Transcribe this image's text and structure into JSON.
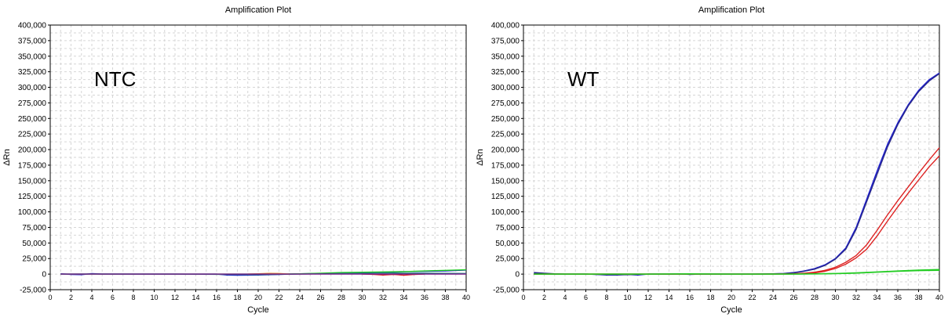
{
  "chart_data": [
    {
      "type": "line",
      "title": "Amplification Plot",
      "annotation": "NTC",
      "xlabel": "Cycle",
      "ylabel": "ΔRn",
      "xlim": [
        0,
        40
      ],
      "ylim": [
        -25000,
        400000
      ],
      "x_ticks": [
        "0",
        "2",
        "4",
        "6",
        "8",
        "10",
        "12",
        "14",
        "16",
        "18",
        "20",
        "22",
        "24",
        "26",
        "28",
        "30",
        "32",
        "34",
        "36",
        "38",
        "40"
      ],
      "y_ticks": [
        "-25,000",
        "0",
        "25,000",
        "50,000",
        "75,000",
        "100,000",
        "125,000",
        "150,000",
        "175,000",
        "200,000",
        "225,000",
        "250,000",
        "275,000",
        "300,000",
        "325,000",
        "350,000",
        "375,000",
        "400,000"
      ],
      "grid": true,
      "colors": {
        "blue": "#1a1ad0",
        "navy": "#2a2a8a",
        "green": "#22cc22",
        "teal": "#1f7f7f",
        "red": "#dd2222",
        "orange": "#e08a1e",
        "purple": "#7a1a8a"
      },
      "series": [
        {
          "color": "#1a1ad0",
          "x": [
            1,
            2,
            3,
            4,
            5,
            6,
            8,
            10,
            12,
            14,
            16,
            17,
            18,
            20,
            22,
            24,
            26,
            28,
            30,
            32,
            34,
            36,
            38,
            40
          ],
          "values": [
            500,
            -500,
            -800,
            800,
            0,
            0,
            0,
            0,
            0,
            0,
            0,
            -1500,
            -1800,
            -1500,
            -500,
            500,
            1000,
            1200,
            2000,
            3000,
            4000,
            4500,
            5000,
            6500
          ]
        },
        {
          "color": "#22cc22",
          "x": [
            1,
            2,
            4,
            6,
            8,
            10,
            12,
            14,
            16,
            18,
            20,
            22,
            24,
            26,
            28,
            30,
            32,
            34,
            36,
            38,
            40
          ],
          "values": [
            0,
            0,
            0,
            0,
            0,
            0,
            0,
            0,
            0,
            0,
            0,
            0,
            500,
            1500,
            2500,
            3000,
            3500,
            4000,
            5000,
            6000,
            7000
          ]
        },
        {
          "color": "#1f7f7f",
          "x": [
            1,
            4,
            8,
            12,
            16,
            20,
            24,
            28,
            32,
            34,
            36,
            40
          ],
          "values": [
            0,
            300,
            0,
            0,
            -300,
            -800,
            0,
            1000,
            2000,
            1500,
            1500,
            1000
          ]
        },
        {
          "color": "#e08a1e",
          "x": [
            19,
            20,
            21,
            22,
            23
          ],
          "values": [
            0,
            500,
            1200,
            1000,
            0
          ]
        },
        {
          "color": "#dd2222",
          "x": [
            30,
            31,
            32,
            33,
            34,
            35,
            36
          ],
          "values": [
            0,
            -300,
            -1500,
            -500,
            -1800,
            -600,
            0
          ]
        },
        {
          "color": "#7a1a8a",
          "x": [
            1,
            4,
            8,
            12,
            16,
            20,
            24,
            28,
            30,
            32,
            34,
            36,
            38,
            40
          ],
          "values": [
            0,
            0,
            0,
            0,
            0,
            0,
            0,
            0,
            0,
            0,
            0,
            0,
            0,
            0
          ]
        }
      ]
    },
    {
      "type": "line",
      "title": "Amplification Plot",
      "annotation": "WT",
      "xlabel": "Cycle",
      "ylabel": "ΔRn",
      "xlim": [
        0,
        40
      ],
      "ylim": [
        -25000,
        400000
      ],
      "x_ticks": [
        "0",
        "2",
        "4",
        "6",
        "8",
        "10",
        "12",
        "14",
        "16",
        "18",
        "20",
        "22",
        "24",
        "26",
        "28",
        "30",
        "32",
        "34",
        "36",
        "38",
        "40"
      ],
      "y_ticks": [
        "-25,000",
        "0",
        "25,000",
        "50,000",
        "75,000",
        "100,000",
        "125,000",
        "150,000",
        "175,000",
        "200,000",
        "225,000",
        "250,000",
        "275,000",
        "300,000",
        "325,000",
        "350,000",
        "375,000",
        "400,000"
      ],
      "grid": true,
      "colors": {
        "blue": "#1a1ad0",
        "navy": "#2a2a8a",
        "green": "#22cc22",
        "red": "#dd2222"
      },
      "series": [
        {
          "color": "#1a1ad0",
          "x": [
            1,
            2,
            3,
            4,
            5,
            6,
            7,
            8,
            9,
            10,
            11,
            12,
            13,
            14,
            15,
            16,
            17,
            18,
            19,
            20,
            21,
            22,
            23,
            24,
            25,
            26,
            27,
            28,
            29,
            30,
            31,
            32,
            33,
            34,
            35,
            36,
            37,
            38,
            39,
            40
          ],
          "values": [
            1500,
            1000,
            0,
            0,
            0,
            0,
            -500,
            -1500,
            -1500,
            -500,
            -1500,
            0,
            0,
            0,
            500,
            -500,
            0,
            0,
            0,
            0,
            0,
            0,
            0,
            500,
            1000,
            2500,
            5000,
            9000,
            15000,
            25000,
            42000,
            75000,
            120000,
            165000,
            208000,
            243000,
            272000,
            295000,
            312000,
            323000
          ]
        },
        {
          "color": "#2a2a8a",
          "x": [
            1,
            2,
            3,
            4,
            6,
            8,
            10,
            12,
            14,
            16,
            18,
            20,
            22,
            24,
            25,
            26,
            27,
            28,
            29,
            30,
            31,
            32,
            33,
            34,
            35,
            36,
            37,
            38,
            39,
            40
          ],
          "values": [
            2500,
            1500,
            500,
            0,
            0,
            -1000,
            -1000,
            0,
            0,
            0,
            0,
            0,
            0,
            500,
            800,
            2000,
            4500,
            8000,
            14000,
            24000,
            40000,
            72000,
            116000,
            160000,
            204000,
            240000,
            270000,
            293000,
            310000,
            322000
          ]
        },
        {
          "color": "#dd2222",
          "x": [
            1,
            4,
            8,
            12,
            16,
            20,
            24,
            26,
            27,
            28,
            29,
            30,
            31,
            32,
            33,
            34,
            35,
            36,
            37,
            38,
            39,
            40
          ],
          "values": [
            0,
            0,
            0,
            0,
            0,
            0,
            0,
            500,
            1500,
            3000,
            6000,
            11000,
            19000,
            30000,
            47000,
            70000,
            95000,
            118000,
            140000,
            162000,
            183000,
            203000
          ]
        },
        {
          "color": "#dd2222",
          "x": [
            1,
            4,
            8,
            12,
            16,
            20,
            24,
            26,
            27,
            28,
            29,
            30,
            31,
            32,
            33,
            34,
            35,
            36,
            37,
            38,
            39,
            40
          ],
          "values": [
            0,
            0,
            0,
            0,
            0,
            0,
            0,
            300,
            1000,
            2000,
            4500,
            9000,
            16000,
            26000,
            40000,
            61000,
            85000,
            108000,
            130000,
            151000,
            172000,
            190000
          ]
        },
        {
          "color": "#22cc22",
          "x": [
            1,
            4,
            8,
            12,
            16,
            20,
            24,
            26,
            28,
            30,
            32,
            34,
            36,
            38,
            40
          ],
          "values": [
            0,
            0,
            0,
            0,
            0,
            0,
            0,
            0,
            500,
            1000,
            2000,
            3500,
            5000,
            6500,
            7500
          ]
        },
        {
          "color": "#22cc22",
          "x": [
            1,
            4,
            8,
            12,
            16,
            20,
            24,
            26,
            28,
            30,
            32,
            34,
            36,
            38,
            40
          ],
          "values": [
            0,
            0,
            0,
            0,
            500,
            0,
            0,
            0,
            300,
            800,
            1500,
            3000,
            4500,
            5500,
            6000
          ]
        }
      ]
    }
  ]
}
